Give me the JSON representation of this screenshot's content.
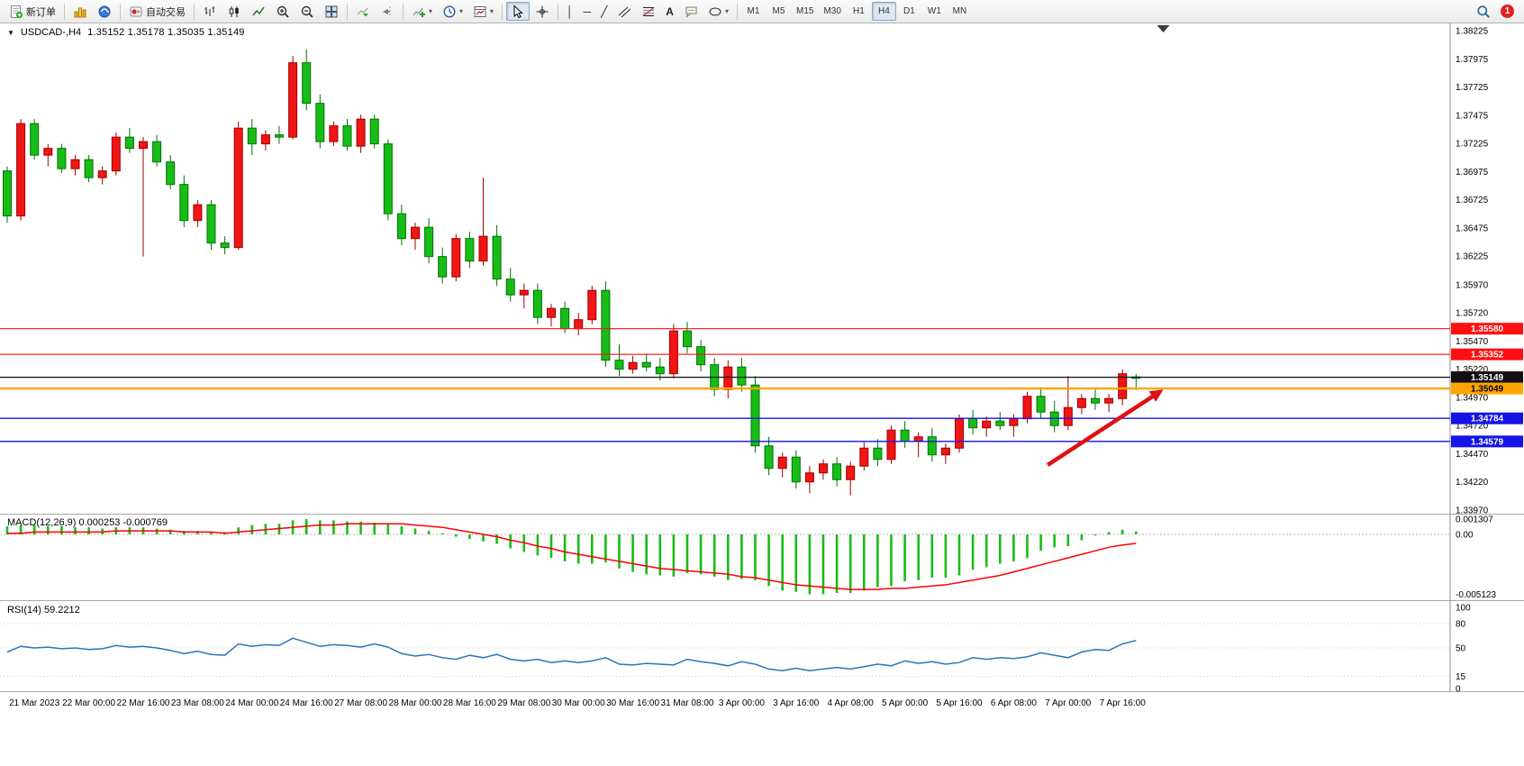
{
  "toolbar": {
    "new_order": "新订单",
    "autotrading": "自动交易",
    "timeframes": [
      "M1",
      "M5",
      "M15",
      "M30",
      "H1",
      "H4",
      "D1",
      "W1",
      "MN"
    ],
    "active_timeframe": "H4",
    "notification_count": "1"
  },
  "icons": {
    "caret": "▾",
    "collapse_arrow": "▼",
    "vertical_line": "│",
    "horizontal_line": "─",
    "trendline": "╱",
    "text_tool": "A"
  },
  "chart_data": [
    {
      "type": "candlestick",
      "symbol": "USDCAD-,H4",
      "ohlc": "1.35152 1.35178 1.35035 1.35149",
      "up_color": "#f21515",
      "up_stroke": "#9d0000",
      "down_color": "#17bd17",
      "down_stroke": "#027102",
      "y_axis_labels": [
        "1.38225",
        "1.37975",
        "1.37725",
        "1.37475",
        "1.37225",
        "1.36975",
        "1.36725",
        "1.36475",
        "1.36225",
        "1.35970",
        "1.35720",
        "1.35470",
        "1.35220",
        "1.34970",
        "1.34720",
        "1.34470",
        "1.34220",
        "1.33970"
      ],
      "x_labels": [
        "21 Mar 2023",
        "22 Mar 00:00",
        "22 Mar 16:00",
        "23 Mar 08:00",
        "24 Mar 00:00",
        "24 Mar 16:00",
        "27 Mar 08:00",
        "28 Mar 00:00",
        "28 Mar 16:00",
        "29 Mar 08:00",
        "30 Mar 00:00",
        "30 Mar 16:00",
        "31 Mar 08:00",
        "3 Apr 00:00",
        "3 Apr 16:00",
        "4 Apr 08:00",
        "5 Apr 00:00",
        "5 Apr 16:00",
        "6 Apr 08:00",
        "7 Apr 00:00",
        "7 Apr 16:00"
      ],
      "x_label_first_index": 2,
      "x_label_step": 4,
      "hlines": [
        {
          "price": 1.3558,
          "label": "1.35580",
          "color": "#ff1010",
          "width": 1.2,
          "text": "#ffffff"
        },
        {
          "price": 1.35352,
          "label": "1.35352",
          "color": "#ff1010",
          "width": 1.2,
          "text": "#ffffff"
        },
        {
          "price": 1.35149,
          "label": "1.35149",
          "color": "#101010",
          "width": 1.2,
          "text": "#ffffff"
        },
        {
          "price": 1.35049,
          "label": "1.35049",
          "color": "#ffa500",
          "width": 2.4,
          "text": "#000000"
        },
        {
          "price": 1.34784,
          "label": "1.34784",
          "color": "#1414e6",
          "width": 1.4,
          "text": "#ffffff"
        },
        {
          "price": 1.34579,
          "label": "1.34579",
          "color": "#1414e6",
          "width": 1.4,
          "text": "#ffffff"
        }
      ],
      "arrow": {
        "from_index": 76.5,
        "from_price": 1.3437,
        "to_index": 85.0,
        "to_price": 1.3504,
        "color": "#e01010"
      },
      "shift_marker_index": 85,
      "candles": [
        [
          1.3698,
          1.3702,
          1.3652,
          1.3658
        ],
        [
          1.3658,
          1.3744,
          1.3654,
          1.374
        ],
        [
          1.374,
          1.3744,
          1.3708,
          1.3712
        ],
        [
          1.3712,
          1.3722,
          1.3702,
          1.3718
        ],
        [
          1.3718,
          1.3722,
          1.3696,
          1.37
        ],
        [
          1.37,
          1.3712,
          1.3694,
          1.3708
        ],
        [
          1.3708,
          1.3712,
          1.3688,
          1.3692
        ],
        [
          1.3692,
          1.3702,
          1.3686,
          1.3698
        ],
        [
          1.3698,
          1.3732,
          1.3694,
          1.3728
        ],
        [
          1.3728,
          1.3736,
          1.3714,
          1.3718
        ],
        [
          1.3718,
          1.3728,
          1.3622,
          1.3724
        ],
        [
          1.3724,
          1.373,
          1.3702,
          1.3706
        ],
        [
          1.3706,
          1.3712,
          1.3682,
          1.3686
        ],
        [
          1.3686,
          1.3694,
          1.3648,
          1.3654
        ],
        [
          1.3654,
          1.3672,
          1.3648,
          1.3668
        ],
        [
          1.3668,
          1.3672,
          1.3628,
          1.3634
        ],
        [
          1.3634,
          1.364,
          1.3624,
          1.363
        ],
        [
          1.363,
          1.3742,
          1.3628,
          1.3736
        ],
        [
          1.3736,
          1.3744,
          1.3712,
          1.3722
        ],
        [
          1.3722,
          1.3734,
          1.3716,
          1.373
        ],
        [
          1.373,
          1.3738,
          1.3722,
          1.3728
        ],
        [
          1.3728,
          1.38,
          1.3726,
          1.3794
        ],
        [
          1.3794,
          1.3806,
          1.3752,
          1.3758
        ],
        [
          1.3758,
          1.3766,
          1.3718,
          1.3724
        ],
        [
          1.3724,
          1.3742,
          1.372,
          1.3738
        ],
        [
          1.3738,
          1.3744,
          1.3716,
          1.372
        ],
        [
          1.372,
          1.3748,
          1.3714,
          1.3744
        ],
        [
          1.3744,
          1.3748,
          1.3718,
          1.3722
        ],
        [
          1.3722,
          1.3726,
          1.3654,
          1.366
        ],
        [
          1.366,
          1.3668,
          1.3632,
          1.3638
        ],
        [
          1.3638,
          1.3652,
          1.3628,
          1.3648
        ],
        [
          1.3648,
          1.3656,
          1.3616,
          1.3622
        ],
        [
          1.3622,
          1.363,
          1.3598,
          1.3604
        ],
        [
          1.3604,
          1.3642,
          1.36,
          1.3638
        ],
        [
          1.3638,
          1.3644,
          1.3612,
          1.3618
        ],
        [
          1.3618,
          1.3692,
          1.3614,
          1.364
        ],
        [
          1.364,
          1.365,
          1.3596,
          1.3602
        ],
        [
          1.3602,
          1.3612,
          1.3582,
          1.3588
        ],
        [
          1.3588,
          1.3598,
          1.3576,
          1.3592
        ],
        [
          1.3592,
          1.3598,
          1.3562,
          1.3568
        ],
        [
          1.3568,
          1.358,
          1.356,
          1.3576
        ],
        [
          1.3576,
          1.3582,
          1.3554,
          1.3558
        ],
        [
          1.3558,
          1.3572,
          1.3552,
          1.3566
        ],
        [
          1.3566,
          1.3596,
          1.3562,
          1.3592
        ],
        [
          1.3592,
          1.36,
          1.3524,
          1.353
        ],
        [
          1.353,
          1.3544,
          1.3516,
          1.3522
        ],
        [
          1.3522,
          1.3534,
          1.3518,
          1.3528
        ],
        [
          1.3528,
          1.3536,
          1.352,
          1.3524
        ],
        [
          1.3524,
          1.3532,
          1.3512,
          1.3518
        ],
        [
          1.3518,
          1.3562,
          1.3514,
          1.3556
        ],
        [
          1.3556,
          1.3564,
          1.3536,
          1.3542
        ],
        [
          1.3542,
          1.3548,
          1.352,
          1.3526
        ],
        [
          1.3526,
          1.3532,
          1.3498,
          1.3504
        ],
        [
          1.3504,
          1.353,
          1.3496,
          1.3524
        ],
        [
          1.3524,
          1.3532,
          1.3502,
          1.3508
        ],
        [
          1.3508,
          1.3516,
          1.3448,
          1.3454
        ],
        [
          1.3454,
          1.3462,
          1.3428,
          1.3434
        ],
        [
          1.3434,
          1.3448,
          1.3426,
          1.3444
        ],
        [
          1.3444,
          1.345,
          1.3416,
          1.3422
        ],
        [
          1.3422,
          1.3436,
          1.3412,
          1.343
        ],
        [
          1.343,
          1.3442,
          1.3424,
          1.3438
        ],
        [
          1.3438,
          1.3444,
          1.3418,
          1.3424
        ],
        [
          1.3424,
          1.344,
          1.341,
          1.3436
        ],
        [
          1.3436,
          1.3458,
          1.3432,
          1.3452
        ],
        [
          1.3452,
          1.346,
          1.3436,
          1.3442
        ],
        [
          1.3442,
          1.3472,
          1.3438,
          1.3468
        ],
        [
          1.3468,
          1.3476,
          1.3452,
          1.3458
        ],
        [
          1.3458,
          1.3466,
          1.3444,
          1.3462
        ],
        [
          1.3462,
          1.347,
          1.344,
          1.3446
        ],
        [
          1.3446,
          1.3456,
          1.3438,
          1.3452
        ],
        [
          1.3452,
          1.3482,
          1.3448,
          1.3478
        ],
        [
          1.3478,
          1.3486,
          1.3464,
          1.347
        ],
        [
          1.347,
          1.348,
          1.3462,
          1.3476
        ],
        [
          1.3476,
          1.3484,
          1.3468,
          1.3472
        ],
        [
          1.3472,
          1.3482,
          1.3462,
          1.3478
        ],
        [
          1.3478,
          1.3502,
          1.3474,
          1.3498
        ],
        [
          1.3498,
          1.3506,
          1.3478,
          1.3484
        ],
        [
          1.3484,
          1.3494,
          1.3466,
          1.3472
        ],
        [
          1.3472,
          1.3516,
          1.3468,
          1.3488
        ],
        [
          1.3488,
          1.35,
          1.3482,
          1.3496
        ],
        [
          1.3496,
          1.3504,
          1.3486,
          1.3492
        ],
        [
          1.3492,
          1.35,
          1.3484,
          1.3496
        ],
        [
          1.3496,
          1.3522,
          1.349,
          1.3518
        ],
        [
          1.35152,
          1.35178,
          1.35035,
          1.35149
        ]
      ]
    },
    {
      "type": "bar+line",
      "name": "MACD",
      "title": "MACD(12,26,9) 0.000253 -0.000769",
      "histogram_color": "#17bd17",
      "signal_color": "#ff0000",
      "y_labels": [
        {
          "value": 0.001307,
          "label": "0.001307"
        },
        {
          "value": 0,
          "label": "0.00"
        },
        {
          "value": -0.005123,
          "label": "-0.005123"
        }
      ],
      "histogram": [
        0.0007,
        0.0008,
        0.0008,
        0.0007,
        0.0007,
        0.0006,
        0.0006,
        0.0005,
        0.0006,
        0.0006,
        0.0006,
        0.0005,
        0.0004,
        0.0003,
        0.0003,
        0.0002,
        0.0002,
        0.0006,
        0.0008,
        0.0009,
        0.0009,
        0.0012,
        0.0013,
        0.0012,
        0.0012,
        0.0011,
        0.0011,
        0.001,
        0.0009,
        0.0007,
        0.0005,
        0.0003,
        0.0001,
        -0.0002,
        -0.0004,
        -0.0006,
        -0.0008,
        -0.0012,
        -0.0015,
        -0.0018,
        -0.002,
        -0.0023,
        -0.0025,
        -0.0025,
        -0.0024,
        -0.0029,
        -0.0032,
        -0.0034,
        -0.0035,
        -0.0036,
        -0.0033,
        -0.0034,
        -0.0036,
        -0.0039,
        -0.0038,
        -0.0039,
        -0.0044,
        -0.0048,
        -0.0049,
        -0.0051,
        -0.0051,
        -0.005,
        -0.005,
        -0.0048,
        -0.0045,
        -0.0044,
        -0.004,
        -0.0039,
        -0.0037,
        -0.0037,
        -0.0035,
        -0.003,
        -0.0028,
        -0.0025,
        -0.0023,
        -0.002,
        -0.0014,
        -0.0011,
        -0.001,
        -0.0005,
        -0.0001,
        0.0002,
        0.0004,
        0.000253
      ],
      "signal": [
        0.0001,
        0.0001,
        0.0002,
        0.0002,
        0.0002,
        0.0002,
        0.0002,
        0.0002,
        0.0003,
        0.0003,
        0.0003,
        0.0003,
        0.0003,
        0.0002,
        0.0002,
        0.0002,
        0.0001,
        0.0002,
        0.0003,
        0.0004,
        0.0005,
        0.0006,
        0.0007,
        0.0008,
        0.0008,
        0.0009,
        0.0009,
        0.0009,
        0.0009,
        0.0009,
        0.0008,
        0.0007,
        0.0006,
        0.0004,
        0.0002,
        0.0,
        -0.0002,
        -0.0005,
        -0.0007,
        -0.001,
        -0.0012,
        -0.0015,
        -0.0017,
        -0.0019,
        -0.0021,
        -0.0023,
        -0.0025,
        -0.0027,
        -0.0029,
        -0.003,
        -0.0031,
        -0.0032,
        -0.0033,
        -0.0034,
        -0.0036,
        -0.0037,
        -0.0039,
        -0.0041,
        -0.0043,
        -0.0044,
        -0.0045,
        -0.0046,
        -0.0047,
        -0.0047,
        -0.0047,
        -0.0046,
        -0.0046,
        -0.0045,
        -0.0044,
        -0.0043,
        -0.0041,
        -0.0039,
        -0.0037,
        -0.0035,
        -0.0032,
        -0.0029,
        -0.0026,
        -0.0023,
        -0.002,
        -0.0017,
        -0.0014,
        -0.0011,
        -0.0009,
        -0.00077
      ]
    },
    {
      "type": "line",
      "name": "RSI",
      "title": "RSI(14) 59.2212",
      "color": "#2e75b6",
      "y_labels": [
        {
          "value": 100,
          "label": "100"
        },
        {
          "value": 80,
          "label": "80"
        },
        {
          "value": 50,
          "label": "50"
        },
        {
          "value": 15,
          "label": "15"
        },
        {
          "value": 0,
          "label": "0"
        }
      ],
      "levels": [
        80,
        50,
        15
      ],
      "values": [
        45,
        52,
        50,
        51,
        49,
        50,
        48,
        49,
        53,
        51,
        52,
        50,
        47,
        43,
        46,
        42,
        41,
        55,
        52,
        54,
        53,
        62,
        57,
        52,
        54,
        53,
        51,
        55,
        51,
        43,
        40,
        42,
        38,
        36,
        41,
        38,
        42,
        36,
        34,
        36,
        32,
        34,
        32,
        34,
        38,
        30,
        29,
        31,
        30,
        29,
        36,
        33,
        31,
        28,
        33,
        30,
        24,
        22,
        25,
        22,
        24,
        26,
        24,
        27,
        30,
        28,
        34,
        31,
        33,
        30,
        32,
        38,
        36,
        38,
        37,
        39,
        44,
        41,
        38,
        45,
        48,
        47,
        55,
        59.22
      ]
    }
  ]
}
